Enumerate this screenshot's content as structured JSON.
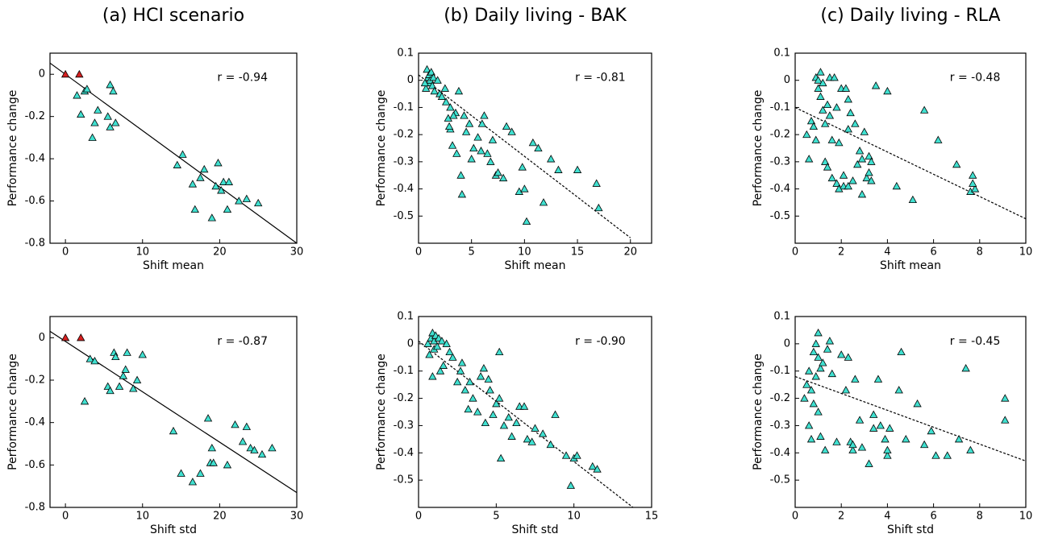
{
  "chart_data": [
    {
      "type": "scatter",
      "title": "(a) HCI scenario",
      "xlabel": "Shift mean",
      "ylabel": "Performance change",
      "annotation": "r = -0.94",
      "xlim": [
        -2,
        30
      ],
      "ylim": [
        -0.8,
        0.1
      ],
      "xticks": [
        0,
        10,
        20,
        30
      ],
      "yticks": [
        -0.8,
        -0.6,
        -0.4,
        -0.2,
        0
      ],
      "series": [
        {
          "color": "#40e0d0",
          "x": [
            1.5,
            2,
            2.5,
            2.8,
            3.5,
            3.8,
            4.2,
            5.5,
            5.8,
            5.8,
            6.2,
            6.5,
            14.5,
            15.2,
            16.5,
            16.8,
            17.5,
            18,
            19,
            19.5,
            19.8,
            20.2,
            20.5,
            21,
            21.2,
            22.5,
            23.5,
            25
          ],
          "values": [
            -0.1,
            -0.19,
            -0.08,
            -0.07,
            -0.3,
            -0.23,
            -0.17,
            -0.2,
            -0.05,
            -0.25,
            -0.08,
            -0.23,
            -0.43,
            -0.38,
            -0.52,
            -0.64,
            -0.49,
            -0.45,
            -0.68,
            -0.53,
            -0.42,
            -0.55,
            -0.51,
            -0.64,
            -0.51,
            -0.6,
            -0.59,
            -0.61
          ]
        },
        {
          "color": "#d62020",
          "x": [
            0,
            1.8
          ],
          "values": [
            0,
            0
          ]
        }
      ],
      "trendline": {
        "x": [
          -2,
          30
        ],
        "values": [
          0.053,
          -0.8
        ],
        "dashed": false
      }
    },
    {
      "type": "scatter",
      "title": "(b) Daily living - BAK",
      "xlabel": "Shift mean",
      "ylabel": "Performance change",
      "annotation": "r = -0.81",
      "xlim": [
        0,
        22
      ],
      "ylim": [
        -0.6,
        0.1
      ],
      "xticks": [
        0,
        5,
        10,
        15,
        20
      ],
      "yticks": [
        -0.5,
        -0.4,
        -0.3,
        -0.2,
        -0.1,
        0,
        0.1
      ],
      "series": [
        {
          "color": "#40e0d0",
          "x": [
            0.8,
            0.9,
            1,
            1,
            1.1,
            1.2,
            1.3,
            1.4,
            0.7,
            0.6,
            1.5,
            1.8,
            2,
            2.2,
            2.5,
            2.6,
            2.8,
            3,
            3.2,
            3,
            3.5,
            3.6,
            3.8,
            4,
            4.1,
            4.3,
            4.5,
            4.8,
            5,
            5.2,
            5.6,
            5.9,
            6,
            6.2,
            6.5,
            6.8,
            7,
            7.3,
            7.5,
            8,
            8.3,
            8.8,
            9.5,
            10,
            10.2,
            10.8,
            11.3,
            11.8,
            12.5,
            13.2,
            15,
            16.8,
            17,
            9.8,
            2.9,
            3.3
          ],
          "values": [
            0.04,
            0.01,
            0.02,
            -0.01,
            0,
            0.03,
            -0.02,
            0.01,
            -0.03,
            -0.01,
            -0.04,
            0,
            -0.05,
            -0.06,
            -0.03,
            -0.08,
            -0.14,
            -0.1,
            -0.24,
            -0.18,
            -0.12,
            -0.27,
            -0.04,
            -0.35,
            -0.42,
            -0.13,
            -0.19,
            -0.16,
            -0.29,
            -0.25,
            -0.21,
            -0.26,
            -0.16,
            -0.13,
            -0.27,
            -0.3,
            -0.22,
            -0.35,
            -0.34,
            -0.36,
            -0.17,
            -0.19,
            -0.41,
            -0.4,
            -0.52,
            -0.23,
            -0.25,
            -0.45,
            -0.29,
            -0.33,
            -0.33,
            -0.38,
            -0.47,
            -0.32,
            -0.17,
            -0.13
          ]
        }
      ],
      "trendline": {
        "x": [
          0,
          20
        ],
        "values": [
          0.02,
          -0.58
        ],
        "dashed": true
      }
    },
    {
      "type": "scatter",
      "title": "(c) Daily living - RLA",
      "xlabel": "Shift mean",
      "ylabel": "Performance change",
      "annotation": "r = -0.48",
      "xlim": [
        0,
        10
      ],
      "ylim": [
        -0.6,
        0.1
      ],
      "xticks": [
        0,
        2,
        4,
        6,
        8,
        10
      ],
      "yticks": [
        -0.5,
        -0.4,
        -0.3,
        -0.2,
        -0.1,
        0,
        0.1
      ],
      "series": [
        {
          "color": "#40e0d0",
          "x": [
            0.5,
            0.6,
            0.7,
            0.8,
            0.9,
            0.9,
            1,
            1,
            1.1,
            1.1,
            1.2,
            1.2,
            1.3,
            1.3,
            1.4,
            1.4,
            1.5,
            1.5,
            1.6,
            1.6,
            1.7,
            1.8,
            1.8,
            1.9,
            2,
            2.1,
            2.1,
            2.2,
            2.3,
            2.3,
            2.3,
            2.4,
            2.5,
            2.6,
            2.7,
            2.8,
            2.9,
            3,
            3.1,
            3.2,
            3.2,
            3.3,
            3.3,
            3.5,
            4,
            4.4,
            5.1,
            5.6,
            6.2,
            7,
            7.6,
            7.7,
            7.8,
            7.7,
            1.9,
            2.9
          ],
          "values": [
            -0.2,
            -0.29,
            -0.15,
            -0.17,
            -0.22,
            0.01,
            0,
            -0.03,
            0.03,
            -0.06,
            -0.01,
            -0.11,
            -0.3,
            -0.16,
            -0.32,
            -0.09,
            -0.13,
            0.01,
            -0.22,
            -0.36,
            0.01,
            -0.1,
            -0.38,
            -0.23,
            -0.03,
            -0.39,
            -0.35,
            -0.03,
            -0.07,
            -0.39,
            -0.18,
            -0.12,
            -0.37,
            -0.16,
            -0.31,
            -0.26,
            -0.42,
            -0.19,
            -0.36,
            -0.28,
            -0.34,
            -0.3,
            -0.37,
            -0.02,
            -0.04,
            -0.39,
            -0.44,
            -0.11,
            -0.22,
            -0.31,
            -0.41,
            -0.35,
            -0.4,
            -0.38,
            -0.4,
            -0.29
          ]
        }
      ],
      "trendline": {
        "x": [
          0,
          10
        ],
        "values": [
          -0.1,
          -0.51
        ],
        "dashed": true
      }
    },
    {
      "type": "scatter",
      "xlabel": "Shift std",
      "ylabel": "Performance change",
      "annotation": "r = -0.87",
      "xlim": [
        -2,
        30
      ],
      "ylim": [
        -0.8,
        0.1
      ],
      "xticks": [
        0,
        10,
        20,
        30
      ],
      "yticks": [
        -0.8,
        -0.6,
        -0.4,
        -0.2,
        0
      ],
      "series": [
        {
          "color": "#40e0d0",
          "x": [
            2.5,
            3.2,
            3.8,
            5.5,
            5.8,
            6.3,
            6.5,
            7,
            7.5,
            7.8,
            8,
            8.8,
            9.3,
            10,
            14,
            15,
            16.5,
            17.5,
            18.5,
            18.8,
            19,
            19.2,
            21,
            22,
            23,
            23.5,
            24,
            24.5,
            25.5,
            26.8
          ],
          "values": [
            -0.3,
            -0.1,
            -0.11,
            -0.23,
            -0.25,
            -0.07,
            -0.09,
            -0.23,
            -0.18,
            -0.15,
            -0.07,
            -0.24,
            -0.2,
            -0.08,
            -0.44,
            -0.64,
            -0.68,
            -0.64,
            -0.38,
            -0.59,
            -0.52,
            -0.59,
            -0.6,
            -0.41,
            -0.49,
            -0.42,
            -0.52,
            -0.53,
            -0.55,
            -0.52
          ]
        },
        {
          "color": "#d62020",
          "x": [
            0,
            2
          ],
          "values": [
            0,
            0
          ]
        }
      ],
      "trendline": {
        "x": [
          -2,
          30
        ],
        "values": [
          0.03,
          -0.73
        ],
        "dashed": false
      }
    },
    {
      "type": "scatter",
      "xlabel": "Shift std",
      "ylabel": "Performance change",
      "annotation": "r = -0.90",
      "xlim": [
        0,
        15
      ],
      "ylim": [
        -0.6,
        0.1
      ],
      "xticks": [
        0,
        5,
        10,
        15
      ],
      "yticks": [
        -0.5,
        -0.4,
        -0.3,
        -0.2,
        -0.1,
        0,
        0.1
      ],
      "series": [
        {
          "color": "#40e0d0",
          "x": [
            0.6,
            0.8,
            0.9,
            1,
            1,
            1.1,
            1.2,
            0.7,
            1.3,
            1.5,
            1.8,
            2,
            1.4,
            0.9,
            1.6,
            2.2,
            2.5,
            2.7,
            3,
            3.2,
            3.3,
            3.5,
            3.8,
            4,
            4.2,
            4.3,
            4.5,
            4.6,
            4.8,
            5,
            5.2,
            5.3,
            5.2,
            5.5,
            5.8,
            6,
            6.3,
            6.5,
            6.8,
            7,
            7.3,
            7.5,
            8,
            8.5,
            8.8,
            9.5,
            9.8,
            10,
            10.2,
            11.2,
            11.5,
            2.8
          ],
          "values": [
            0,
            0.02,
            0.04,
            0.01,
            -0.02,
            0.03,
            -0.01,
            -0.04,
            0.02,
            0.01,
            0,
            -0.03,
            -0.1,
            -0.12,
            -0.08,
            -0.05,
            -0.14,
            -0.1,
            -0.17,
            -0.24,
            -0.14,
            -0.2,
            -0.25,
            -0.12,
            -0.09,
            -0.29,
            -0.13,
            -0.17,
            -0.26,
            -0.22,
            -0.2,
            -0.42,
            -0.03,
            -0.3,
            -0.27,
            -0.34,
            -0.29,
            -0.23,
            -0.23,
            -0.35,
            -0.36,
            -0.31,
            -0.33,
            -0.37,
            -0.26,
            -0.41,
            -0.52,
            -0.42,
            -0.41,
            -0.45,
            -0.46,
            -0.07
          ]
        }
      ],
      "trendline": {
        "x": [
          0,
          13.8
        ],
        "values": [
          0.01,
          -0.6
        ],
        "dashed": true
      }
    },
    {
      "type": "scatter",
      "xlabel": "Shift std",
      "ylabel": "Performance change",
      "annotation": "r = -0.45",
      "xlim": [
        0,
        10
      ],
      "ylim": [
        -0.6,
        0.1
      ],
      "xticks": [
        0,
        2,
        4,
        6,
        8,
        10
      ],
      "yticks": [
        -0.5,
        -0.4,
        -0.3,
        -0.2,
        -0.1,
        0,
        0.1
      ],
      "series": [
        {
          "color": "#40e0d0",
          "x": [
            0.4,
            0.5,
            0.6,
            0.6,
            0.7,
            0.7,
            0.8,
            0.8,
            0.9,
            0.9,
            1,
            1,
            1,
            1.1,
            1.1,
            1.2,
            1.3,
            1.4,
            1.5,
            1.6,
            1.8,
            2,
            2.2,
            2.3,
            2.4,
            2.5,
            2.5,
            2.6,
            2.8,
            2.9,
            3.2,
            3.4,
            3.4,
            3.7,
            3.9,
            4,
            4,
            4.1,
            4.5,
            4.6,
            4.8,
            5.3,
            5.6,
            5.9,
            6.1,
            6.6,
            7.1,
            7.4,
            7.6,
            9.1,
            9.1,
            3.6
          ],
          "values": [
            -0.2,
            -0.15,
            -0.1,
            -0.3,
            -0.17,
            -0.35,
            -0.03,
            -0.22,
            0,
            -0.12,
            0.04,
            -0.05,
            -0.25,
            -0.09,
            -0.34,
            -0.07,
            -0.39,
            -0.02,
            0.01,
            -0.11,
            -0.36,
            -0.04,
            -0.17,
            -0.05,
            -0.36,
            -0.39,
            -0.37,
            -0.13,
            -0.28,
            -0.38,
            -0.44,
            -0.31,
            -0.26,
            -0.3,
            -0.35,
            -0.41,
            -0.39,
            -0.31,
            -0.17,
            -0.03,
            -0.35,
            -0.22,
            -0.37,
            -0.32,
            -0.41,
            -0.41,
            -0.35,
            -0.09,
            -0.39,
            -0.2,
            -0.28,
            -0.13
          ]
        }
      ],
      "trendline": {
        "x": [
          0,
          10
        ],
        "values": [
          -0.12,
          -0.43
        ],
        "dashed": true
      }
    }
  ]
}
